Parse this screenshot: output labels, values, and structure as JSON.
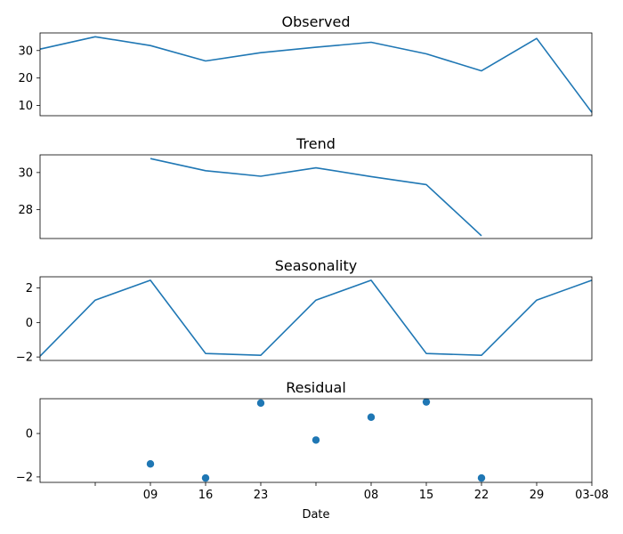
{
  "chart_data": [
    {
      "type": "line",
      "title": "Observed",
      "x": [
        0,
        1,
        2,
        3,
        4,
        5,
        6,
        7,
        8,
        9,
        10
      ],
      "values": [
        30.5,
        35.0,
        31.8,
        26.2,
        29.2,
        31.2,
        33.0,
        28.8,
        22.6,
        34.4,
        7.5
      ],
      "yticks": [
        10,
        20,
        30
      ],
      "ylim": [
        6.3,
        36.4
      ],
      "color": "#1f77b4"
    },
    {
      "type": "line",
      "title": "Trend",
      "x": [
        2,
        3,
        4,
        5,
        6,
        7,
        8
      ],
      "values": [
        30.75,
        30.1,
        29.8,
        30.25,
        29.78,
        29.35,
        26.6
      ],
      "yticks": [
        28,
        30
      ],
      "ylim": [
        26.45,
        30.95
      ],
      "color": "#1f77b4"
    },
    {
      "type": "line",
      "title": "Seasonality",
      "x": [
        0,
        1,
        2,
        3,
        4,
        5,
        6,
        7,
        8,
        9,
        10
      ],
      "values": [
        -1.95,
        1.3,
        2.45,
        -1.8,
        -1.9,
        1.3,
        2.45,
        -1.8,
        -1.9,
        1.3,
        2.45
      ],
      "yticks": [
        -2,
        0,
        2
      ],
      "ylim": [
        -2.2,
        2.65
      ],
      "color": "#1f77b4"
    },
    {
      "type": "scatter",
      "title": "Residual",
      "x": [
        2,
        3,
        4,
        5,
        6,
        7,
        8
      ],
      "values": [
        -1.4,
        -2.05,
        1.4,
        -0.3,
        0.75,
        1.45,
        -2.05
      ],
      "yticks": [
        -2,
        0
      ],
      "ylim": [
        -2.25,
        1.6
      ],
      "color": "#1f77b4"
    }
  ],
  "x_axis": {
    "label": "Date",
    "xlim": [
      0,
      10
    ],
    "ticks": [
      {
        "x": 1,
        "label": ""
      },
      {
        "x": 2,
        "label": "09"
      },
      {
        "x": 3,
        "label": "16"
      },
      {
        "x": 4,
        "label": "23"
      },
      {
        "x": 5,
        "label": ""
      },
      {
        "x": 6,
        "label": "08"
      },
      {
        "x": 7,
        "label": "15"
      },
      {
        "x": 8,
        "label": "22"
      },
      {
        "x": 9,
        "label": "29"
      },
      {
        "x": 10,
        "label": "03-08"
      }
    ]
  }
}
